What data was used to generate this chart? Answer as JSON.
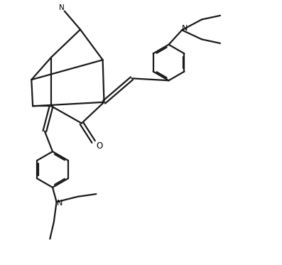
{
  "line_color": "#1a1a1a",
  "bg_color": "#ffffff",
  "line_width": 1.6,
  "figsize": [
    3.97,
    3.73
  ],
  "dpi": 100,
  "xlim": [
    0,
    10
  ],
  "ylim": [
    0,
    10
  ]
}
